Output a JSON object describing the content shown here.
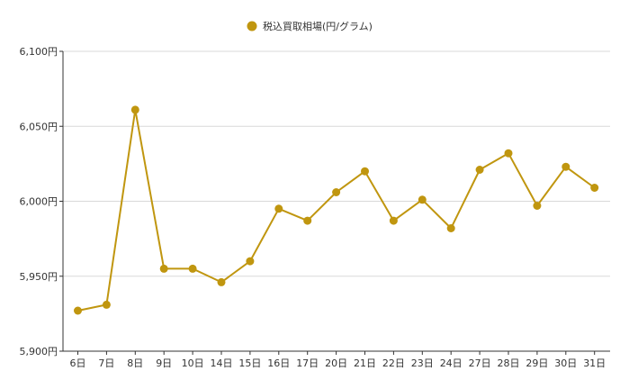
{
  "chart_data": {
    "type": "line",
    "title": "",
    "xlabel": "",
    "ylabel": "",
    "categories": [
      "6日",
      "7日",
      "8日",
      "9日",
      "10日",
      "14日",
      "15日",
      "16日",
      "17日",
      "20日",
      "21日",
      "22日",
      "23日",
      "24日",
      "27日",
      "28日",
      "29日",
      "30日",
      "31日"
    ],
    "series": [
      {
        "name": "税込買取相場(円/グラム)",
        "values": [
          5927,
          5931,
          6061,
          5955,
          5955,
          5946,
          5960,
          5995,
          5987,
          6006,
          6020,
          5987,
          6001,
          5982,
          6021,
          6032,
          5997,
          6023,
          6009
        ]
      }
    ],
    "ylim": [
      5900,
      6100
    ],
    "yticks": [
      5900,
      5950,
      6000,
      6050,
      6100
    ],
    "ytick_labels": [
      "5,900円",
      "5,950円",
      "6,000円",
      "6,050円",
      "6,100円"
    ],
    "grid": true,
    "legend_position": "top-center",
    "colors": {
      "series": "#c0960f",
      "grid": "#d9d9d9",
      "axis": "#333333",
      "text": "#333333"
    }
  }
}
